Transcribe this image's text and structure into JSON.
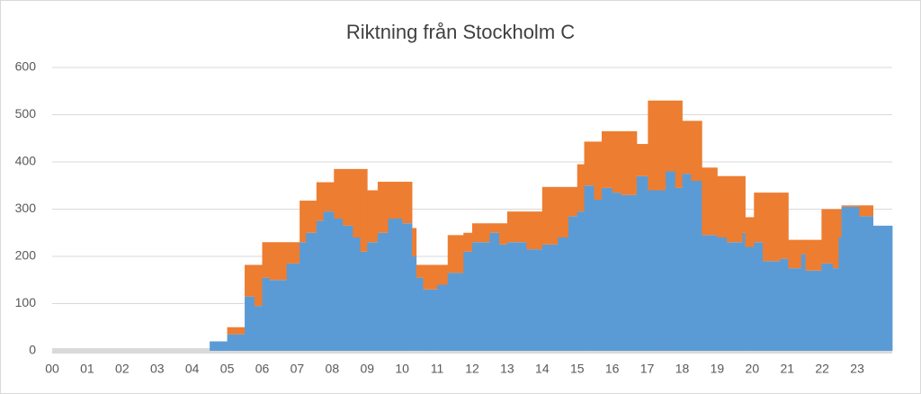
{
  "chart_data": {
    "type": "stacked-step-area",
    "title": "Riktning från Stockholm C",
    "x": [
      0,
      4.5,
      5.0,
      5.5,
      5.78,
      6.0,
      6.2,
      6.7,
      7.07,
      7.25,
      7.55,
      7.75,
      8.05,
      8.3,
      8.59,
      8.8,
      9.0,
      9.3,
      9.6,
      10.0,
      10.28,
      10.4,
      10.6,
      11.0,
      11.3,
      11.75,
      12.0,
      12.5,
      12.77,
      13.0,
      13.55,
      14.0,
      14.45,
      14.75,
      15.0,
      15.2,
      15.48,
      15.7,
      16.0,
      16.25,
      16.7,
      17.02,
      17.53,
      17.8,
      18.0,
      18.25,
      18.56,
      19.0,
      19.27,
      19.72,
      19.8,
      20.05,
      20.3,
      20.8,
      21.03,
      21.4,
      21.52,
      21.98,
      22.3,
      22.47,
      22.55,
      23.06,
      23.45
    ],
    "series": [
      {
        "color": "#5b9bd5",
        "values": [
          0,
          20,
          35,
          115,
          95,
          155,
          150,
          185,
          230,
          250,
          275,
          295,
          280,
          265,
          240,
          210,
          230,
          250,
          280,
          270,
          200,
          155,
          130,
          140,
          165,
          210,
          230,
          250,
          225,
          230,
          215,
          225,
          240,
          285,
          295,
          350,
          320,
          345,
          335,
          330,
          370,
          340,
          380,
          345,
          375,
          360,
          245,
          240,
          230,
          250,
          220,
          230,
          190,
          195,
          175,
          205,
          170,
          185,
          175,
          240,
          305,
          285,
          265
        ]
      },
      {
        "color": "#ed7d31",
        "values": [
          0,
          0,
          15,
          67,
          87,
          75,
          80,
          45,
          88,
          68,
          82,
          62,
          105,
          120,
          145,
          175,
          110,
          108,
          78,
          88,
          60,
          27,
          52,
          42,
          80,
          40,
          40,
          20,
          45,
          65,
          80,
          122,
          107,
          62,
          100,
          93,
          123,
          120,
          130,
          135,
          68,
          190,
          150,
          185,
          112,
          127,
          143,
          130,
          140,
          120,
          63,
          105,
          145,
          140,
          60,
          30,
          65,
          115,
          125,
          60,
          3,
          23,
          0
        ]
      }
    ],
    "xlim": [
      0,
      24
    ],
    "xticks": [
      {
        "value": 0,
        "label": "00"
      },
      {
        "value": 1,
        "label": "01"
      },
      {
        "value": 2,
        "label": "02"
      },
      {
        "value": 3,
        "label": "03"
      },
      {
        "value": 4,
        "label": "04"
      },
      {
        "value": 5,
        "label": "05"
      },
      {
        "value": 6,
        "label": "06"
      },
      {
        "value": 7,
        "label": "07"
      },
      {
        "value": 8,
        "label": "08"
      },
      {
        "value": 9,
        "label": "09"
      },
      10,
      11,
      12,
      13,
      14,
      15,
      16,
      17,
      18,
      19,
      20,
      21,
      22,
      23
    ],
    "ylim": [
      0,
      600
    ],
    "yticks": [
      0,
      100,
      200,
      300,
      400,
      500,
      600
    ],
    "grid": true
  }
}
